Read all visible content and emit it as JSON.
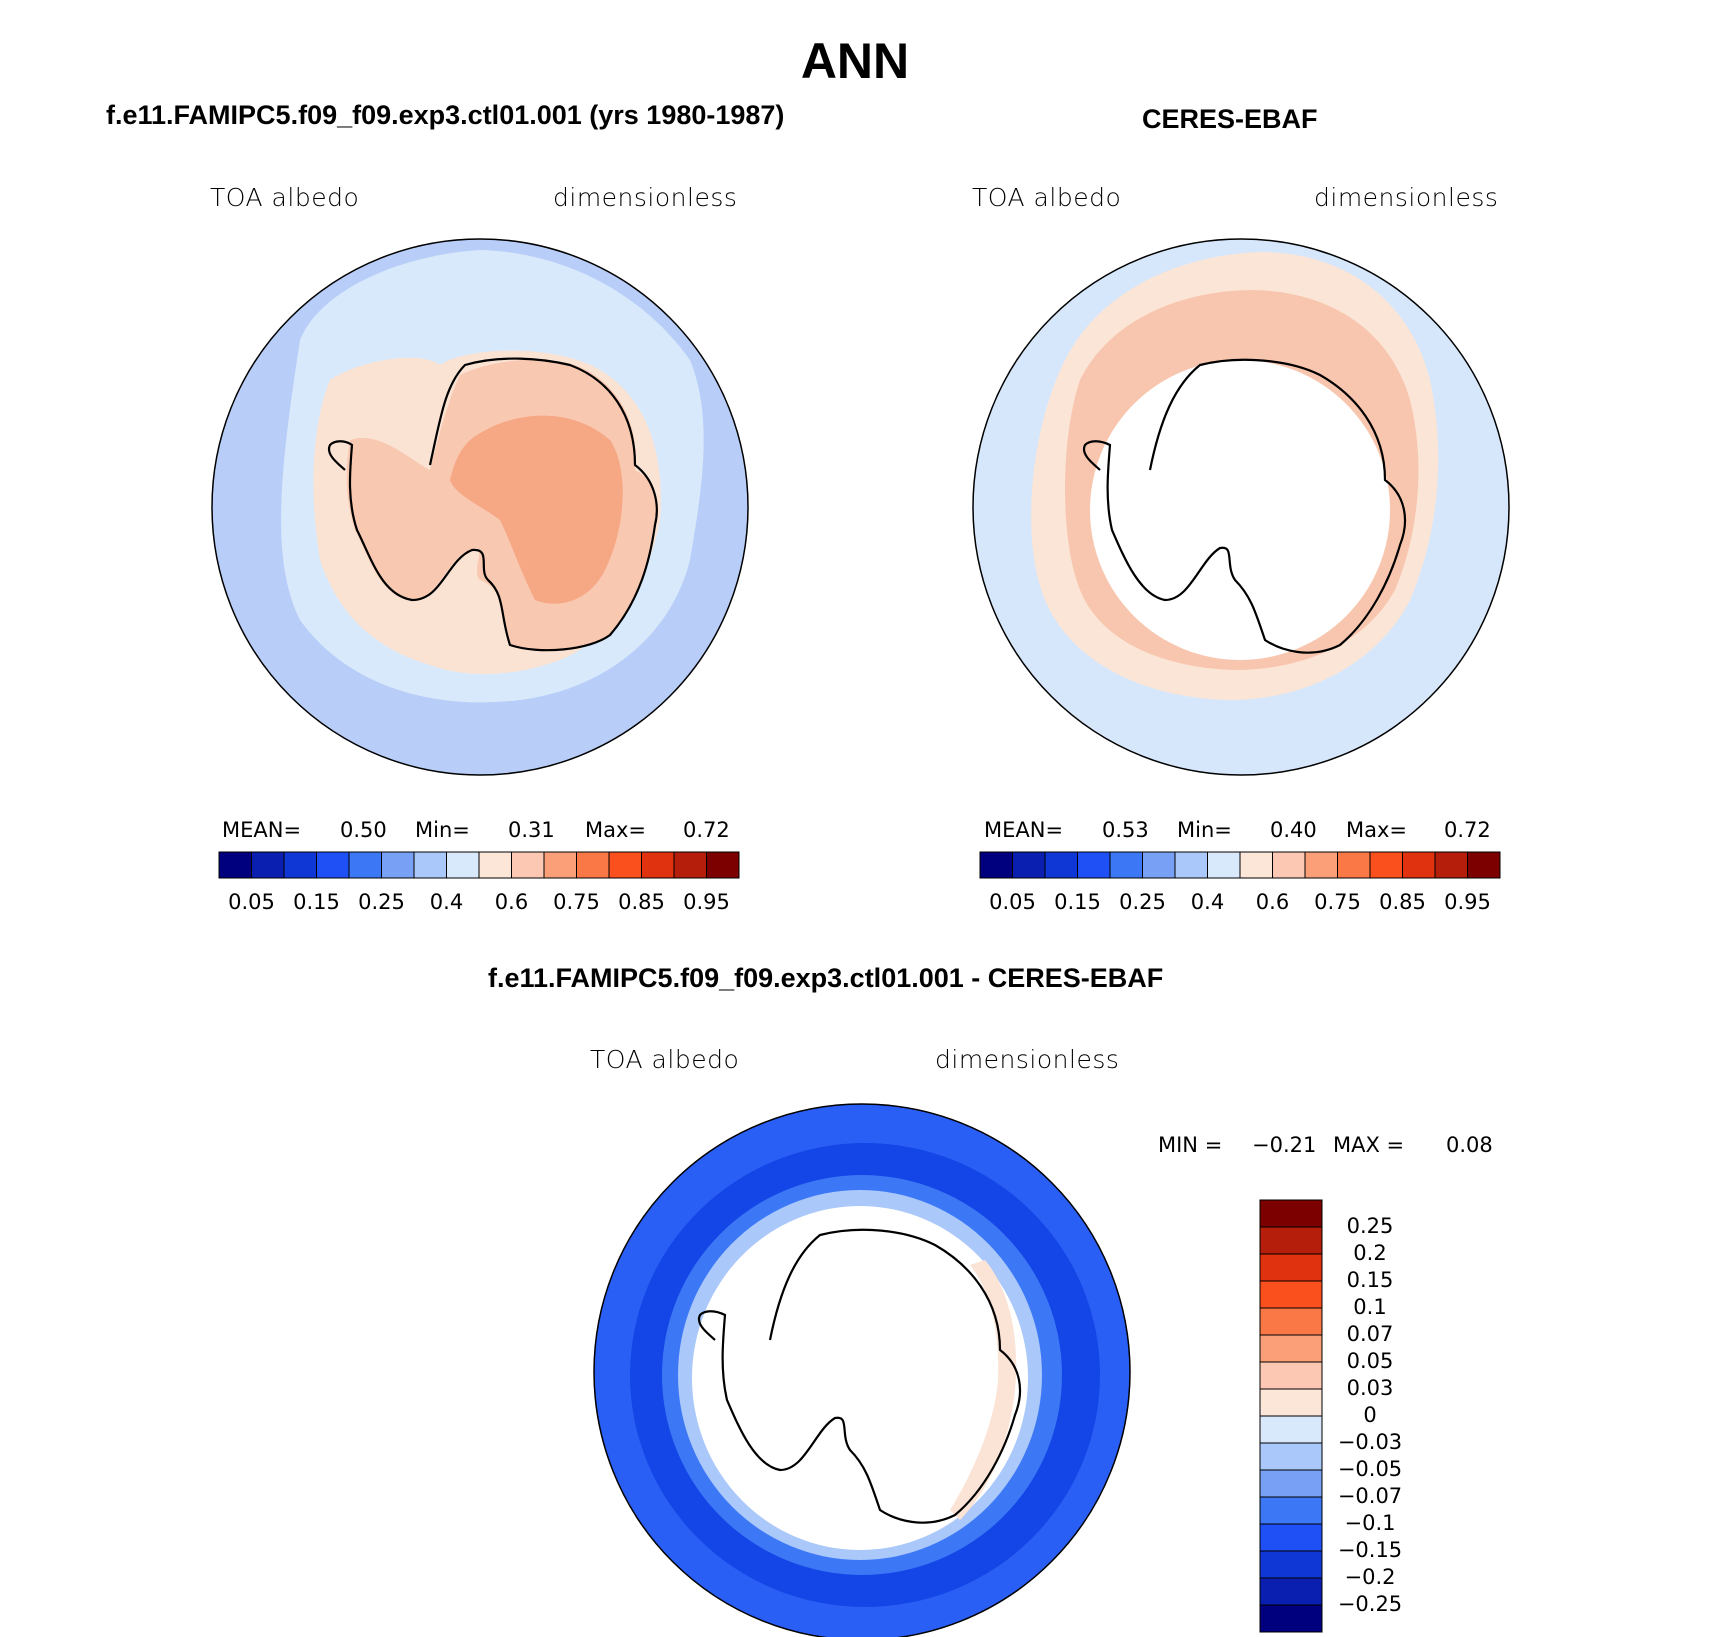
{
  "main_title": "ANN",
  "panels": [
    {
      "title": "f.e11.FAMIPC5.f09_f09.exp3.ctl01.001 (yrs 1980-1987)",
      "left_label": "TOA albedo",
      "right_label": "dimensionless",
      "stats": {
        "mean_label": "MEAN=",
        "mean": "0.50",
        "min_label": "Min=",
        "min": "0.31",
        "max_label": "Max=",
        "max": "0.72"
      }
    },
    {
      "title": "CERES-EBAF",
      "left_label": "TOA albedo",
      "right_label": "dimensionless",
      "stats": {
        "mean_label": "MEAN=",
        "mean": "0.53",
        "min_label": "Min=",
        "min": "0.40",
        "max_label": "Max=",
        "max": "0.72"
      }
    },
    {
      "title": "f.e11.FAMIPC5.f09_f09.exp3.ctl01.001 - CERES-EBAF",
      "left_label": "TOA albedo",
      "right_label": "dimensionless",
      "stats": {
        "min_label": "MIN =",
        "min": "−0.21",
        "max_label": "MAX =",
        "max": "0.08"
      }
    }
  ],
  "colorbar_abs": {
    "colors": [
      "#00007f",
      "#0a1eb0",
      "#0f37d6",
      "#1e50f5",
      "#3c78f5",
      "#78a0f5",
      "#aac8fa",
      "#d7e9fa",
      "#fce6d7",
      "#fcc8b4",
      "#fa9f78",
      "#fa7846",
      "#fa501e",
      "#e1320f",
      "#b41e0a",
      "#7d0000"
    ],
    "tick_labels": [
      "0.05",
      "0.15",
      "0.25",
      "0.4",
      "0.6",
      "0.75",
      "0.85",
      "0.95"
    ]
  },
  "colorbar_diff": {
    "colors": [
      "#00007f",
      "#0a1eb0",
      "#0f37d6",
      "#1e50f5",
      "#3c78f5",
      "#78a0f5",
      "#aac8fa",
      "#d7e9fa",
      "#fce6d7",
      "#fcc8b4",
      "#fa9f78",
      "#fa7846",
      "#fa501e",
      "#e1320f",
      "#b41e0a",
      "#7d0000"
    ],
    "tick_labels": [
      "0.25",
      "0.2",
      "0.15",
      "0.1",
      "0.07",
      "0.05",
      "0.03",
      "0",
      "−0.03",
      "−0.05",
      "−0.07",
      "−0.1",
      "−0.15",
      "−0.2",
      "−0.25"
    ]
  },
  "map_colors": {
    "ocean_model": "#b8cdf7",
    "ice_model": "#d8e9fb",
    "shelf_model": "#fbe3d4",
    "land_model": "#f9c8b1",
    "land_model_core": "#f6a784",
    "ocean_obs": "#d7e7fb",
    "ring_obs": "#fbe5d6",
    "ring_obs_inner": "#f8c6ae",
    "diff_outer": "#2a5ff5",
    "diff_band": "#1445e6",
    "diff_inner": "#3c78f5",
    "diff_edge": "#aac8fa",
    "diff_pos": "#fbe4d6",
    "coast": "#000000"
  }
}
